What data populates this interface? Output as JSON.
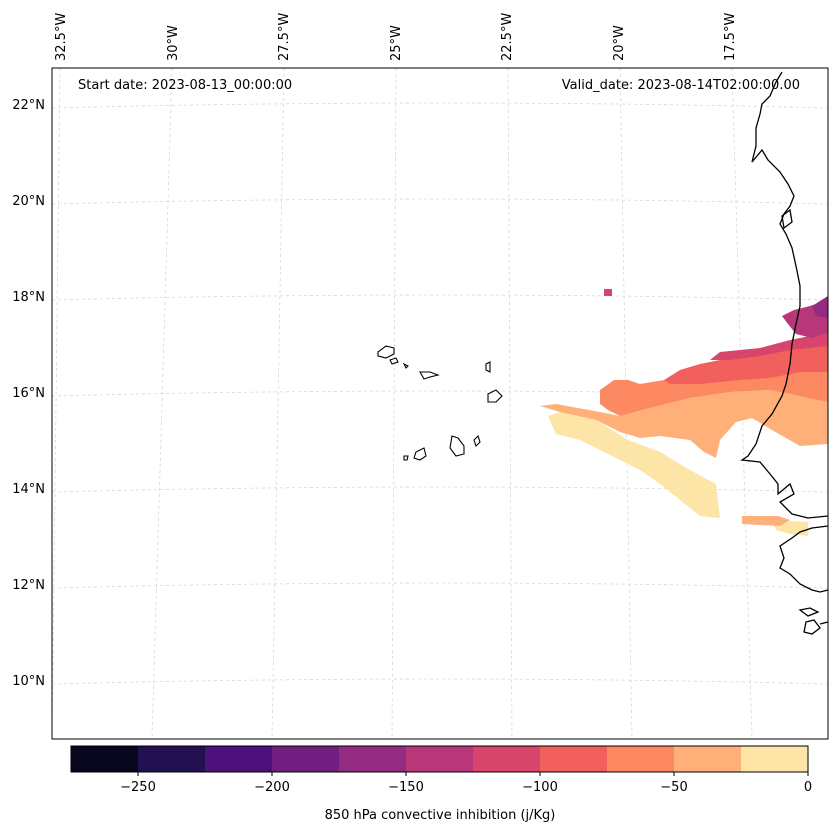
{
  "annotations": {
    "start_date": "Start date: 2023-08-13_00:00:00",
    "valid_date": "Valid_date: 2023-08-14T02:00:00.00"
  },
  "axes": {
    "lat_labels": [
      "22°N",
      "20°N",
      "18°N",
      "16°N",
      "14°N",
      "12°N",
      "10°N"
    ],
    "lon_labels": [
      "32.5°W",
      "30°W",
      "27.5°W",
      "25°W",
      "22.5°W",
      "20°W",
      "17.5°W"
    ]
  },
  "colorbar": {
    "title": "850 hPa convective inhibition (j/Kg)",
    "tick_labels": [
      "−250",
      "−200",
      "−150",
      "−100",
      "−50",
      "0"
    ],
    "levels": [
      -275,
      -250,
      -225,
      -200,
      -175,
      -150,
      -125,
      -100,
      -75,
      -50,
      -25,
      0
    ],
    "colors": [
      "#07061c",
      "#221150",
      "#4d117b",
      "#721f81",
      "#932b80",
      "#b73779",
      "#d8456c",
      "#f1605d",
      "#fc8961",
      "#feb078",
      "#fde5a7"
    ]
  },
  "chart_data": {
    "type": "map-contourf",
    "variable": "850 hPa convective inhibition (j/Kg)",
    "units": "j/Kg",
    "start_date": "2023-08-13_00:00:00",
    "valid_date": "2023-08-14T02:00:00.00",
    "lat_range": [
      8.9,
      22.8
    ],
    "lon_range": [
      -33.0,
      -15.8
    ],
    "gridlines": true
  }
}
